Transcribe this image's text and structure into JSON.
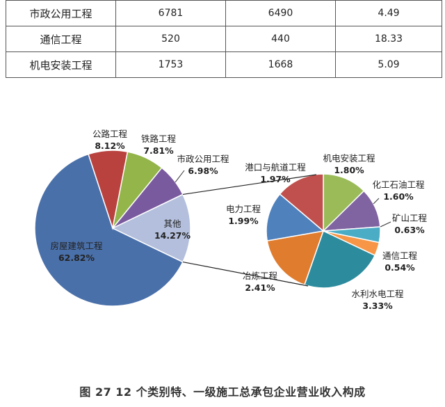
{
  "table": {
    "rows": [
      [
        "市政公用工程",
        "6781",
        "6490",
        "4.49"
      ],
      [
        "通信工程",
        "520",
        "440",
        "18.33"
      ],
      [
        "机电安装工程",
        "1753",
        "1668",
        "5.09"
      ]
    ]
  },
  "caption": "图 27  12 个类别特、一级施工总承包企业营业收入构成",
  "chart_data": [
    {
      "type": "pie",
      "name": "main",
      "slices": [
        {
          "label": "房屋建筑工程",
          "value": 62.82,
          "value_label": "62.82%",
          "color": "#4a70aa"
        },
        {
          "label": "公路工程",
          "value": 8.12,
          "value_label": "8.12%",
          "color": "#b9423f"
        },
        {
          "label": "铁路工程",
          "value": 7.81,
          "value_label": "7.81%",
          "color": "#93b54a"
        },
        {
          "label": "市政公用工程",
          "value": 6.98,
          "value_label": "6.98%",
          "color": "#7a5a9e"
        },
        {
          "label": "其他",
          "value": 14.27,
          "value_label": "14.27%",
          "color": "#b3bfdc"
        }
      ]
    },
    {
      "type": "pie",
      "name": "other-breakdown",
      "slices": [
        {
          "label": "机电安装工程",
          "value": 1.8,
          "value_label": "1.80%",
          "color": "#9bbb59"
        },
        {
          "label": "化工石油工程",
          "value": 1.6,
          "value_label": "1.60%",
          "color": "#8064a2"
        },
        {
          "label": "矿山工程",
          "value": 0.63,
          "value_label": "0.63%",
          "color": "#4bacc6"
        },
        {
          "label": "通信工程",
          "value": 0.54,
          "value_label": "0.54%",
          "color": "#f79646"
        },
        {
          "label": "水利水电工程",
          "value": 3.33,
          "value_label": "3.33%",
          "color": "#2c8c9e"
        },
        {
          "label": "冶炼工程",
          "value": 2.41,
          "value_label": "2.41%",
          "color": "#e07c2e"
        },
        {
          "label": "电力工程",
          "value": 1.99,
          "value_label": "1.99%",
          "color": "#4f81bd"
        },
        {
          "label": "港口与航道工程",
          "value": 1.97,
          "value_label": "1.97%",
          "color": "#c0504d"
        }
      ]
    }
  ]
}
